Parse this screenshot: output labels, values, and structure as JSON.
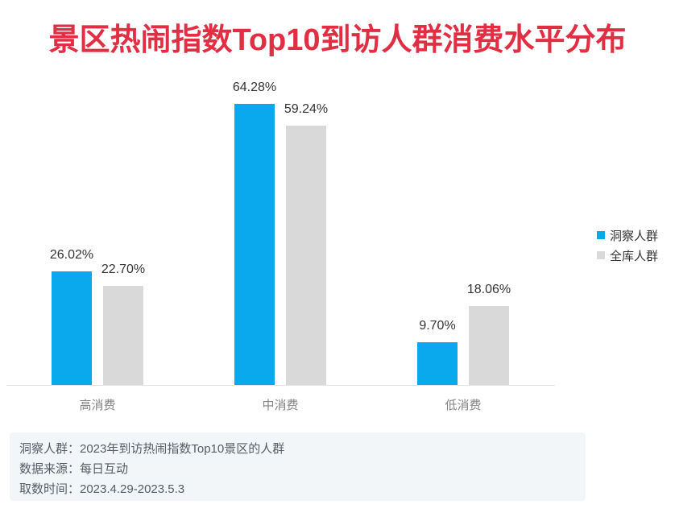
{
  "title": {
    "text": "景区热闹指数Top10到访人群消费水平分布",
    "color": "#e12e43"
  },
  "chart_data": {
    "type": "bar",
    "title": "景区热闹指数Top10到访人群消费水平分布",
    "categories": [
      "高消费",
      "中消费",
      "低消费"
    ],
    "series": [
      {
        "name": "洞察人群",
        "color": "#0aa9ee",
        "values": [
          26.02,
          64.28,
          9.7
        ],
        "labels": [
          "26.02%",
          "64.28%",
          "9.70%"
        ]
      },
      {
        "name": "全库人群",
        "color": "#d9d9d9",
        "values": [
          22.7,
          59.24,
          18.06
        ],
        "labels": [
          "22.70%",
          "59.24%",
          "18.06%"
        ]
      }
    ],
    "xlabel": "",
    "ylabel": "",
    "ylim": [
      0,
      70
    ],
    "grid": false,
    "value_labels_shown": true,
    "legend_position": "right"
  },
  "legend": {
    "items": [
      {
        "label": "洞察人群",
        "color": "#0aa9ee"
      },
      {
        "label": "全库人群",
        "color": "#d9d9d9"
      }
    ]
  },
  "footnote": {
    "lines": [
      {
        "text": "洞察人群：2023年到访热闹指数Top10景区的人群"
      },
      {
        "text": "数据来源：每日互动"
      },
      {
        "text": "取数时间：2023.4.29-2023.5.3"
      }
    ]
  }
}
